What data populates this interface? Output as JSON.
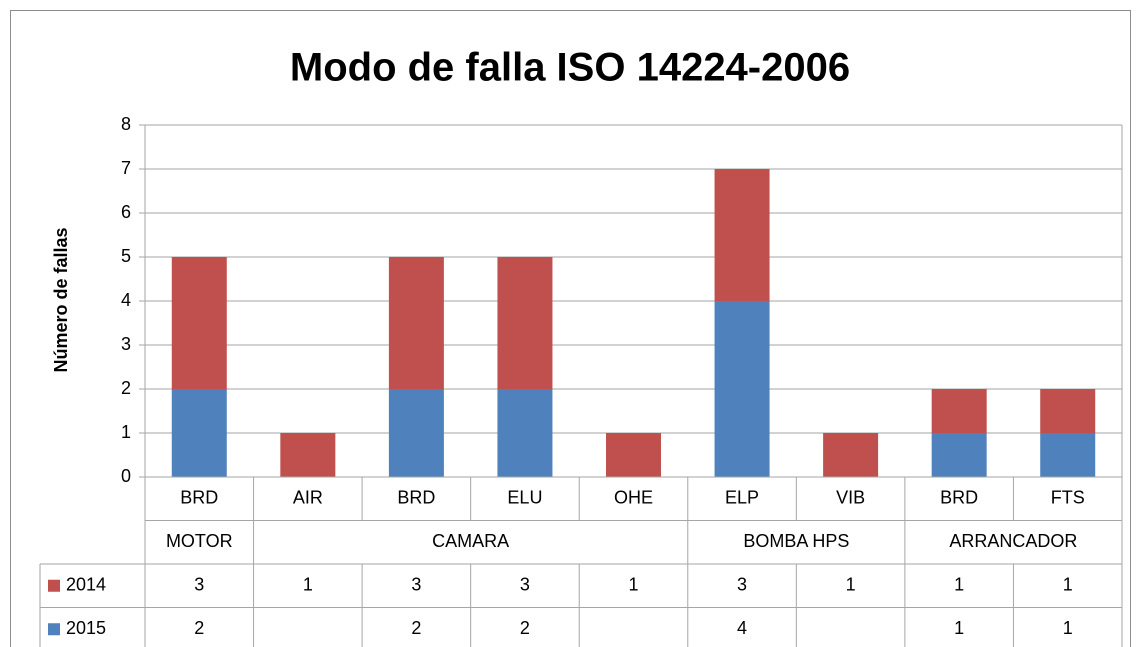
{
  "chart_data": {
    "type": "bar",
    "stacked": true,
    "title": "Modo de falla ISO 14224-2006",
    "y_label": "Número de fallas",
    "groups": [
      {
        "name": "MOTOR",
        "categories": [
          "BRD"
        ]
      },
      {
        "name": "CAMARA",
        "categories": [
          "AIR",
          "BRD",
          "ELU",
          "OHE"
        ]
      },
      {
        "name": "BOMBA HPS",
        "categories": [
          "ELP",
          "VIB"
        ]
      },
      {
        "name": "ARRANCADOR",
        "categories": [
          "BRD",
          "FTS"
        ]
      }
    ],
    "series": [
      {
        "name": "2014",
        "color": "#c0504d",
        "values": [
          3,
          1,
          3,
          3,
          1,
          3,
          1,
          1,
          1
        ]
      },
      {
        "name": "2015",
        "color": "#4f81bd",
        "values": [
          2,
          null,
          2,
          2,
          null,
          4,
          null,
          1,
          1
        ]
      }
    ],
    "ylim": [
      0,
      8
    ],
    "yticks": [
      0,
      1,
      2,
      3,
      4,
      5,
      6,
      7,
      8
    ],
    "grid": true,
    "data_table": true
  }
}
